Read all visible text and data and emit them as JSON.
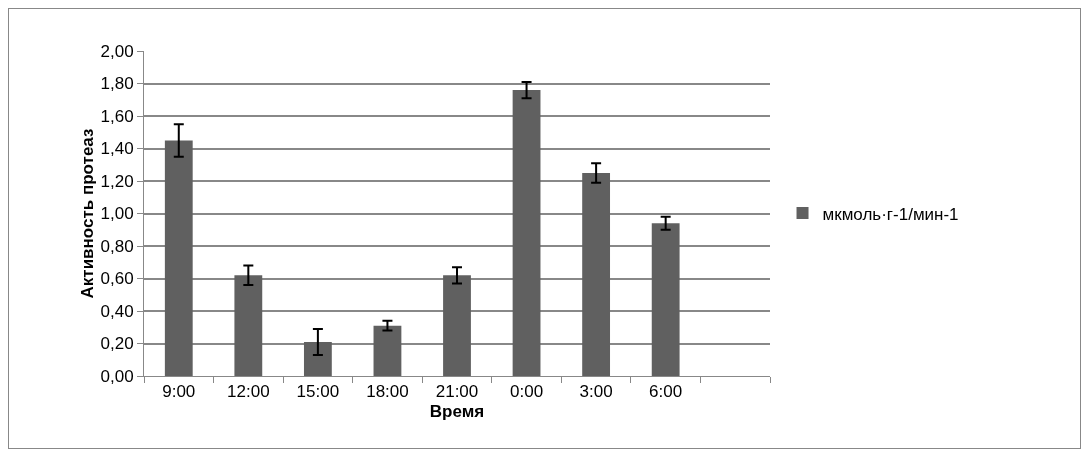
{
  "chart_data": {
    "type": "bar",
    "xlabel": "Время",
    "ylabel": "Активность протеаз",
    "categories": [
      "9:00",
      "12:00",
      "15:00",
      "18:00",
      "21:00",
      "0:00",
      "3:00",
      "6:00",
      null
    ],
    "series": [
      {
        "name": "мкмоль·г-1/мин-1",
        "color": "#606060",
        "values": [
          1.45,
          0.62,
          0.21,
          0.31,
          0.62,
          1.76,
          1.25,
          0.94,
          null
        ],
        "errors": [
          0.1,
          0.06,
          0.08,
          0.03,
          0.05,
          0.05,
          0.06,
          0.04,
          null
        ]
      }
    ],
    "ylim": [
      0,
      2
    ],
    "yticks": [
      {
        "value": 0,
        "label": "0,00"
      },
      {
        "value": 0.2,
        "label": "0,20"
      },
      {
        "value": 0.4,
        "label": "0,40"
      },
      {
        "value": 0.6,
        "label": "0,60"
      },
      {
        "value": 0.8,
        "label": "0,80"
      },
      {
        "value": 1,
        "label": "1,00"
      },
      {
        "value": 1.2,
        "label": "1,20"
      },
      {
        "value": 1.4,
        "label": "1,40"
      },
      {
        "value": 1.6,
        "label": "1,60"
      },
      {
        "value": 1.8,
        "label": "1,80"
      },
      {
        "value": 2,
        "label": "2,00"
      }
    ],
    "grid": "y",
    "legend": "right"
  }
}
